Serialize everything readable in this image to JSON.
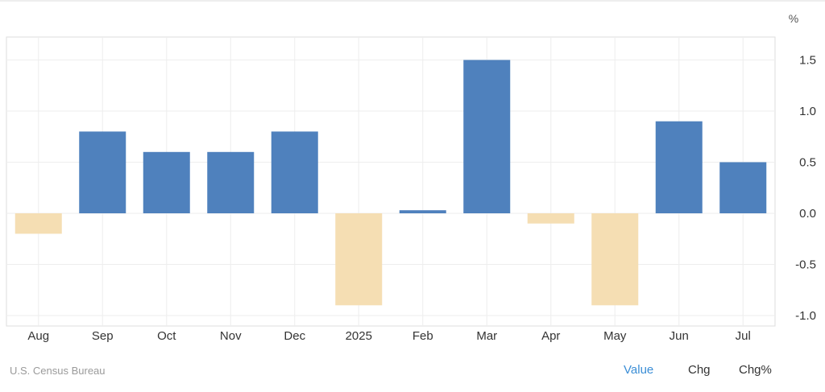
{
  "chart_data": {
    "type": "bar",
    "unit_label": "%",
    "categories": [
      "Aug",
      "Sep",
      "Oct",
      "Nov",
      "Dec",
      "2025",
      "Feb",
      "Mar",
      "Apr",
      "May",
      "Jun",
      "Jul"
    ],
    "values": [
      -0.2,
      0.8,
      0.6,
      0.6,
      0.8,
      -0.9,
      0.03,
      1.5,
      -0.1,
      -0.9,
      0.9,
      0.5
    ],
    "ylim": [
      -1.0,
      1.6
    ],
    "yticks": [
      {
        "value": 1.5,
        "label": "1.5"
      },
      {
        "value": 1.0,
        "label": "1.0"
      },
      {
        "value": 0.5,
        "label": "0.5"
      },
      {
        "value": 0.0,
        "label": "0.0"
      },
      {
        "value": -0.5,
        "label": "-0.5"
      },
      {
        "value": -1.0,
        "label": "-1.0"
      }
    ],
    "grid": true,
    "colors": {
      "positive": "#4f81bd",
      "negative": "#f5deb3",
      "grid": "#eeeeee",
      "axis_text": "#333333",
      "frame": "#dddddd"
    }
  },
  "footer": {
    "source": "U.S. Census Bureau",
    "tabs": {
      "value": "Value",
      "chg": "Chg",
      "chg_pct": "Chg%"
    },
    "active_tab": "Value"
  }
}
